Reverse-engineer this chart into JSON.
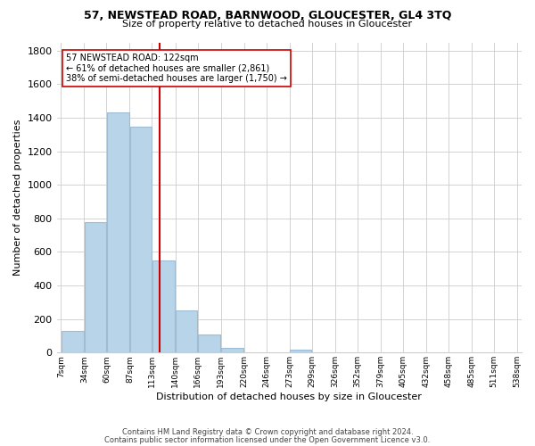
{
  "title": "57, NEWSTEAD ROAD, BARNWOOD, GLOUCESTER, GL4 3TQ",
  "subtitle": "Size of property relative to detached houses in Gloucester",
  "xlabel": "Distribution of detached houses by size in Gloucester",
  "ylabel": "Number of detached properties",
  "bar_color": "#b8d4e8",
  "bar_edge_color": "#a0bcd4",
  "annotation_line1": "57 NEWSTEAD ROAD: 122sqm",
  "annotation_line2": "← 61% of detached houses are smaller (2,861)",
  "annotation_line3": "38% of semi-detached houses are larger (1,750) →",
  "vline_x_idx": 4,
  "vline_color": "#cc0000",
  "footer1": "Contains HM Land Registry data © Crown copyright and database right 2024.",
  "footer2": "Contains public sector information licensed under the Open Government Licence v3.0.",
  "bin_edges": [
    7,
    34,
    60,
    87,
    113,
    140,
    166,
    193,
    220,
    246,
    273,
    299,
    326,
    352,
    379,
    405,
    432,
    458,
    485,
    511,
    538
  ],
  "bin_counts": [
    130,
    780,
    1435,
    1345,
    550,
    250,
    107,
    30,
    0,
    0,
    20,
    0,
    0,
    0,
    0,
    0,
    0,
    0,
    0,
    0
  ],
  "ylim": [
    0,
    1850
  ],
  "yticks": [
    0,
    200,
    400,
    600,
    800,
    1000,
    1200,
    1400,
    1600,
    1800
  ],
  "background_color": "#ffffff",
  "grid_color": "#cccccc",
  "figwidth": 6.0,
  "figheight": 5.0,
  "dpi": 100
}
